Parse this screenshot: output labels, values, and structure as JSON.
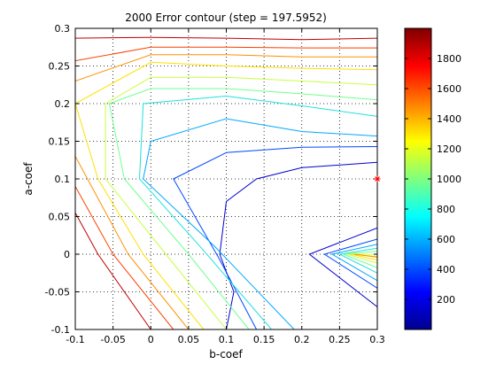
{
  "chart_data": {
    "type": "contour",
    "title": "2000 Error contour (step = 197.5952)",
    "xlabel": "b-coef",
    "ylabel": "a-coef",
    "xlim": [
      -0.1,
      0.3
    ],
    "ylim": [
      -0.1,
      0.3
    ],
    "grid": true,
    "xticks": [
      "-0.1",
      "-0.05",
      "0",
      "0.05",
      "0.1",
      "0.15",
      "0.2",
      "0.25",
      "0.3"
    ],
    "yticks": [
      "-0.1",
      "-0.05",
      "0",
      "0.05",
      "0.1",
      "0.15",
      "0.2",
      "0.25",
      "0.3"
    ],
    "minimum_marker": {
      "x": 0.3,
      "y": 0.1,
      "symbol": "*",
      "color": "#ff0000"
    },
    "colorbar": {
      "colormap": "jet",
      "range": [
        0,
        2000
      ],
      "ticks": [
        "200",
        "400",
        "600",
        "800",
        "1000",
        "1200",
        "1400",
        "1600",
        "1800"
      ]
    },
    "contour_lines": [
      {
        "level": 197.6,
        "color": "#0000d0",
        "points": [
          [
            0.1,
            -0.1
          ],
          [
            0.11,
            -0.05
          ],
          [
            0.0913,
            0
          ],
          [
            0.1,
            0.07
          ],
          [
            0.14,
            0.1
          ],
          [
            0.2,
            0.115
          ],
          [
            0.3,
            0.122
          ]
        ]
      },
      {
        "level": 197.6,
        "color": "#0000d0",
        "points": [
          [
            0.3,
            0.035
          ],
          [
            0.21,
            0
          ],
          [
            0.3,
            -0.07
          ]
        ]
      },
      {
        "level": 395.2,
        "color": "#0048ff",
        "points": [
          [
            0.14,
            -0.1
          ],
          [
            0.09,
            -0.005
          ],
          [
            0.03,
            0.1
          ],
          [
            0.1,
            0.135
          ],
          [
            0.2,
            0.142
          ],
          [
            0.3,
            0.143
          ]
        ]
      },
      {
        "level": 395.2,
        "color": "#0048ff",
        "points": [
          [
            0.3,
            0.02
          ],
          [
            0.23,
            0
          ],
          [
            0.3,
            -0.045
          ]
        ]
      },
      {
        "level": 592.9,
        "color": "#00a8ff",
        "points": [
          [
            0.19,
            -0.1
          ],
          [
            0.085,
            0.01
          ],
          [
            -0.01,
            0.1
          ],
          [
            0,
            0.15
          ],
          [
            0.1,
            0.18
          ],
          [
            0.2,
            0.163
          ],
          [
            0.3,
            0.157
          ]
        ]
      },
      {
        "level": 592.9,
        "color": "#00a8ff",
        "points": [
          [
            0.3,
            0.013
          ],
          [
            0.24,
            0
          ],
          [
            0.3,
            -0.035
          ]
        ]
      },
      {
        "level": 790.4,
        "color": "#20e0e0",
        "points": [
          [
            0.16,
            -0.1
          ],
          [
            0.07,
            0.005
          ],
          [
            -0.015,
            0.1
          ],
          [
            -0.01,
            0.2
          ],
          [
            0.1,
            0.21
          ],
          [
            0.2,
            0.197
          ],
          [
            0.3,
            0.183
          ]
        ]
      },
      {
        "level": 790.4,
        "color": "#20e0e0",
        "points": [
          [
            0.3,
            0.008
          ],
          [
            0.25,
            0
          ],
          [
            0.3,
            -0.025
          ]
        ]
      },
      {
        "level": 988.0,
        "color": "#70ff90",
        "points": [
          [
            0.13,
            -0.1
          ],
          [
            0.05,
            0
          ],
          [
            -0.035,
            0.1
          ],
          [
            -0.055,
            0.2
          ],
          [
            0,
            0.22
          ],
          [
            0.1,
            0.22
          ],
          [
            0.2,
            0.213
          ],
          [
            0.3,
            0.205
          ]
        ]
      },
      {
        "level": 988.0,
        "color": "#70ff90",
        "points": [
          [
            0.3,
            0.004
          ],
          [
            0.255,
            0
          ],
          [
            0.3,
            -0.018
          ]
        ]
      },
      {
        "level": 1185.6,
        "color": "#c8ff40",
        "points": [
          [
            0.1,
            -0.1
          ],
          [
            0.02,
            0
          ],
          [
            -0.06,
            0.1
          ],
          [
            -0.06,
            0.2
          ],
          [
            0,
            0.235
          ],
          [
            0.1,
            0.235
          ],
          [
            0.2,
            0.23
          ],
          [
            0.3,
            0.225
          ]
        ]
      },
      {
        "level": 1185.6,
        "color": "#c8ff40",
        "points": [
          [
            0.3,
            0
          ],
          [
            0.26,
            0
          ],
          [
            0.3,
            -0.012
          ]
        ]
      },
      {
        "level": 1383.2,
        "color": "#ffe000",
        "points": [
          [
            0.07,
            -0.1
          ],
          [
            -0.01,
            0
          ],
          [
            -0.07,
            0.1
          ],
          [
            -0.1,
            0.2
          ],
          [
            0,
            0.255
          ],
          [
            0.1,
            0.25
          ],
          [
            0.2,
            0.247
          ],
          [
            0.3,
            0.245
          ]
        ]
      },
      {
        "level": 1383.2,
        "color": "#ffe000",
        "points": [
          [
            0.3,
            -0.003
          ],
          [
            0.265,
            0
          ],
          [
            0.3,
            -0.008
          ]
        ]
      },
      {
        "level": 1580.8,
        "color": "#ff9000",
        "points": [
          [
            0.05,
            -0.1
          ],
          [
            -0.03,
            0
          ],
          [
            -0.1,
            0.13
          ],
          [
            -0.1,
            0.23
          ],
          [
            0,
            0.265
          ],
          [
            0.1,
            0.265
          ],
          [
            0.2,
            0.262
          ],
          [
            0.3,
            0.262
          ]
        ]
      },
      {
        "level": 1580.8,
        "color": "#ff9000",
        "points": [
          [
            0.3,
            -0.004
          ],
          [
            0.27,
            0
          ],
          [
            0.3,
            -0.004
          ]
        ]
      },
      {
        "level": 1778.4,
        "color": "#ff4000",
        "points": [
          [
            0.03,
            -0.1
          ],
          [
            -0.05,
            0
          ],
          [
            -0.1,
            0.09
          ],
          [
            -0.1,
            0.257
          ],
          [
            0,
            0.275
          ],
          [
            0.1,
            0.275
          ],
          [
            0.2,
            0.274
          ],
          [
            0.3,
            0.274
          ]
        ]
      },
      {
        "level": 1975.9,
        "color": "#c00000",
        "points": [
          [
            0,
            -0.1
          ],
          [
            -0.07,
            0
          ],
          [
            -0.1,
            0.055
          ],
          [
            -0.1,
            0.287
          ],
          [
            0,
            0.288
          ],
          [
            0.1,
            0.287
          ],
          [
            0.2,
            0.285
          ],
          [
            0.3,
            0.287
          ]
        ]
      }
    ]
  }
}
